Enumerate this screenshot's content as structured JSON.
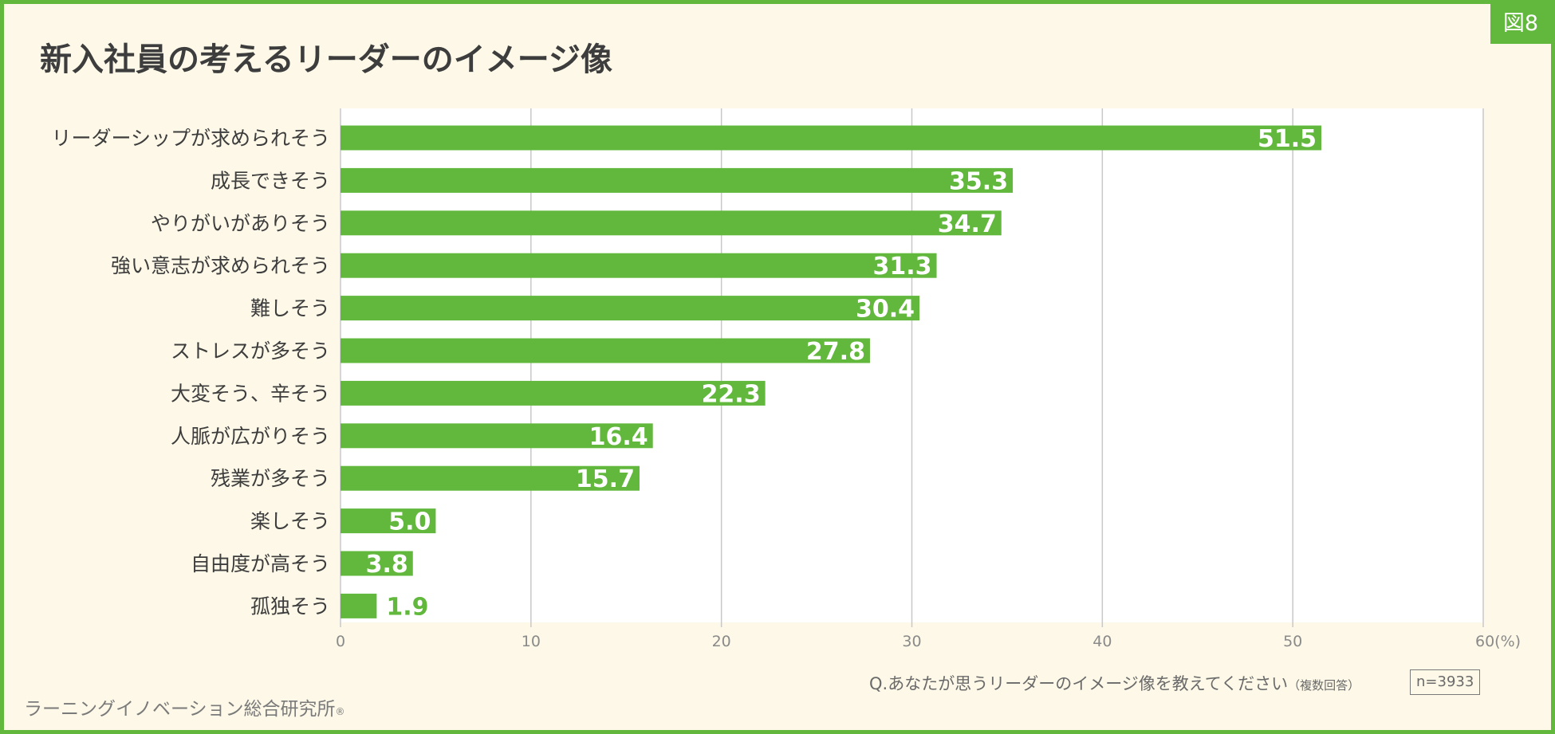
{
  "figure_label": "図8",
  "title": "新入社員の考えるリーダーのイメージ像",
  "question": "Q.あなたが思うリーダーのイメージ像を教えてください",
  "question_note": "（複数回答）",
  "sample_size": "n=3933",
  "source": "ラーニングイノベーション総合研究所",
  "source_mark": "®",
  "colors": {
    "bar": "#62b83d",
    "value_inside": "#ffffff",
    "value_outside": "#62b83d",
    "grid": "#c8c8c8"
  },
  "chart_data": {
    "type": "bar",
    "orientation": "horizontal",
    "title": "新入社員の考えるリーダーのイメージ像",
    "categories": [
      "リーダーシップが求められそう",
      "成長できそう",
      "やりがいがありそう",
      "強い意志が求められそう",
      "難しそう",
      "ストレスが多そう",
      "大変そう、辛そう",
      "人脈が広がりそう",
      "残業が多そう",
      "楽しそう",
      "自由度が高そう",
      "孤独そう"
    ],
    "values": [
      51.5,
      35.3,
      34.7,
      31.3,
      30.4,
      27.8,
      22.3,
      16.4,
      15.7,
      5.0,
      3.8,
      1.9
    ],
    "value_labels": [
      "51.5",
      "35.3",
      "34.7",
      "31.3",
      "30.4",
      "27.8",
      "22.3",
      "16.4",
      "15.7",
      "5.0",
      "3.8",
      "1.9"
    ],
    "xlim": [
      0,
      60
    ],
    "x_ticks": [
      0,
      10,
      20,
      30,
      40,
      50,
      60
    ],
    "x_tick_labels": [
      "0",
      "10",
      "20",
      "30",
      "40",
      "50",
      "60(%)"
    ],
    "xlabel": "",
    "ylabel": "",
    "grid": true,
    "legend": "none"
  }
}
